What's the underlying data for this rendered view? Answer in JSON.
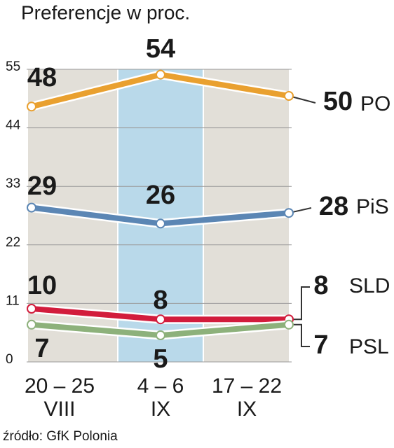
{
  "chart_data": {
    "type": "line",
    "title": "Preferencje  w proc.",
    "categories": [
      [
        "20 – 25",
        "VIII"
      ],
      [
        "4 – 6",
        "IX"
      ],
      [
        "17 – 22",
        "IX"
      ]
    ],
    "series": [
      {
        "name": "PO",
        "color": "#e9a02f",
        "values": [
          48,
          54,
          50
        ]
      },
      {
        "name": "PiS",
        "color": "#5b86b4",
        "values": [
          29,
          26,
          28
        ]
      },
      {
        "name": "SLD",
        "color": "#d21c3c",
        "values": [
          10,
          8,
          8
        ]
      },
      {
        "name": "PSL",
        "color": "#8db17b",
        "values": [
          7,
          5,
          7
        ]
      }
    ],
    "ylim": [
      0,
      55
    ],
    "yticks": [
      0,
      11,
      22,
      33,
      44,
      55
    ],
    "grid": true,
    "highlight_color": "#b9d9ea",
    "band_color": "#e2dfd8",
    "source": "źródło: GfK Polonia"
  }
}
